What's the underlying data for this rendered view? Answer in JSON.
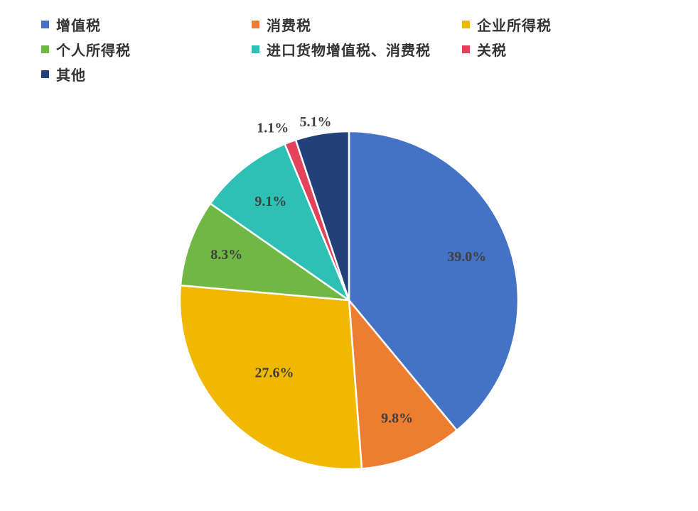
{
  "chart_data": {
    "type": "pie",
    "title": "",
    "legend_position": "top",
    "series": [
      {
        "slices": [
          {
            "label": "增值税",
            "value": 39.0,
            "display": "39.0%",
            "color": "#4472C4"
          },
          {
            "label": "消费税",
            "value": 9.8,
            "display": "9.8%",
            "color": "#ED7D31"
          },
          {
            "label": "企业所得税",
            "value": 27.6,
            "display": "27.6%",
            "color": "#F0B800"
          },
          {
            "label": "个人所得税",
            "value": 8.3,
            "display": "8.3%",
            "color": "#70B843"
          },
          {
            "label": "进口货物增值税、消费税",
            "value": 9.1,
            "display": "9.1%",
            "color": "#2EC0B4"
          },
          {
            "label": "关税",
            "value": 1.1,
            "display": "1.1%",
            "color": "#E2435A"
          },
          {
            "label": "其他",
            "value": 5.1,
            "display": "5.1%",
            "color": "#22407A"
          }
        ]
      }
    ],
    "legend": [
      {
        "label": "增值税",
        "color": "#4472C4"
      },
      {
        "label": "消费税",
        "color": "#ED7D31"
      },
      {
        "label": "企业所得税",
        "color": "#F0B800"
      },
      {
        "label": "个人所得税",
        "color": "#70B843"
      },
      {
        "label": "进口货物增值税、消费税",
        "color": "#2EC0B4"
      },
      {
        "label": "关税",
        "color": "#E2435A"
      },
      {
        "label": "其他",
        "color": "#22407A"
      }
    ]
  }
}
